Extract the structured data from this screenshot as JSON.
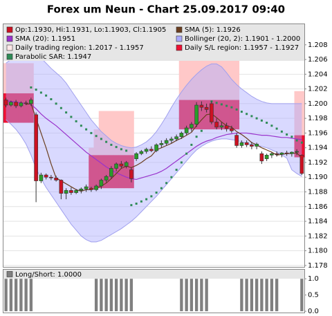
{
  "chart_data": [
    {
      "type": "candlestick",
      "title": "Forex um Neun - Chart 25.09.2017 09:40",
      "up_color": "#2a9c2a",
      "down_color": "#cc1122",
      "ylim": [
        1.1778,
        1.2108
      ],
      "yticks": [
        1.178,
        {
          "value": 1.18,
          "label": "1.180"
        },
        1.182,
        1.184,
        1.186,
        1.188,
        {
          "value": 1.19,
          "label": "1.190"
        },
        1.192,
        1.194,
        1.196,
        1.198,
        {
          "value": 1.2,
          "label": "1.200"
        },
        1.202,
        1.204,
        1.206,
        1.208
      ],
      "grid": true,
      "legend": [
        {
          "label": "Op:1.1930, Hi:1.1931, Lo:1.1903, Cl:1.1905",
          "color": "#cc1122"
        },
        {
          "label": "SMA (5): 1.1926",
          "color": "#6b3e1f"
        },
        {
          "label": "SMA (20): 1.1951",
          "color": "#9933cc"
        },
        {
          "label": "Bollinger (20, 2): 1.1901 - 1.2000",
          "color": "#aaaaff"
        },
        {
          "label": "Daily trading region: 1.2017 - 1.1957",
          "color": "#ffe8e8"
        },
        {
          "label": "Daily S/L region: 1.1957 - 1.1927",
          "color": "#ee1133"
        },
        {
          "label": "Parabolic SAR: 1.1947",
          "color": "#2e8b57"
        }
      ],
      "open": [
        1.2005,
        1.1998,
        1.2002,
        1.1997,
        1.2001,
        1.2,
        1.1985,
        1.1895,
        1.1903,
        1.19,
        1.1899,
        1.1896,
        1.1878,
        1.1882,
        1.1879,
        1.1882,
        1.1884,
        1.1885,
        1.1883,
        1.1888,
        1.1896,
        1.1901,
        1.1912,
        1.1918,
        1.1915,
        1.191,
        1.1925,
        1.1932,
        1.1935,
        1.1938,
        1.1936,
        1.1944,
        1.1946,
        1.195,
        1.1952,
        1.1955,
        1.196,
        1.1967,
        1.1972,
        1.1998,
        1.1995,
        1.2,
        1.1975,
        1.1968,
        1.197,
        1.1966,
        1.1957,
        1.1943,
        1.1947,
        1.1944,
        1.1942,
        1.1932,
        1.1925,
        1.193,
        1.1932,
        1.1931,
        1.1933,
        1.1932,
        1.1934,
        1.193
      ],
      "high": [
        1.2008,
        1.2004,
        1.2005,
        1.2003,
        1.2004,
        1.2008,
        1.1988,
        1.1906,
        1.1905,
        1.1903,
        1.1902,
        1.1897,
        1.1885,
        1.1886,
        1.1884,
        1.1886,
        1.189,
        1.1887,
        1.189,
        1.1898,
        1.1903,
        1.1915,
        1.192,
        1.1922,
        1.1922,
        1.1913,
        1.1934,
        1.1937,
        1.194,
        1.1942,
        1.1946,
        1.195,
        1.1953,
        1.1955,
        1.1958,
        1.1962,
        1.197,
        1.1975,
        1.2002,
        1.2003,
        1.2,
        1.2003,
        1.198,
        1.1975,
        1.1974,
        1.197,
        1.196,
        1.195,
        1.195,
        1.1948,
        1.1947,
        1.1935,
        1.1932,
        1.1934,
        1.1935,
        1.1934,
        1.1936,
        1.1935,
        1.1938,
        1.1931
      ],
      "low": [
        1.1995,
        1.1996,
        1.1994,
        1.1995,
        1.1998,
        1.1997,
        1.1866,
        1.1892,
        1.1897,
        1.1896,
        1.1894,
        1.187,
        1.187,
        1.1876,
        1.1877,
        1.1878,
        1.188,
        1.188,
        1.1881,
        1.1884,
        1.1893,
        1.1898,
        1.1908,
        1.1912,
        1.1912,
        1.1893,
        1.1922,
        1.193,
        1.1932,
        1.1934,
        1.1934,
        1.194,
        1.1943,
        1.1946,
        1.1949,
        1.1952,
        1.1957,
        1.1962,
        1.1968,
        1.199,
        1.1988,
        1.1972,
        1.1965,
        1.1964,
        1.1962,
        1.196,
        1.194,
        1.194,
        1.1941,
        1.1938,
        1.1938,
        1.1918,
        1.1922,
        1.1926,
        1.1928,
        1.1927,
        1.1929,
        1.1928,
        1.193,
        1.1903
      ],
      "close": [
        1.1998,
        1.2002,
        1.1997,
        1.2001,
        1.2,
        1.2005,
        1.1895,
        1.1903,
        1.19,
        1.1899,
        1.1896,
        1.1878,
        1.1882,
        1.1879,
        1.1882,
        1.1884,
        1.1887,
        1.1883,
        1.1888,
        1.1896,
        1.1901,
        1.1912,
        1.1918,
        1.1915,
        1.192,
        1.1898,
        1.1932,
        1.1935,
        1.1938,
        1.1936,
        1.1944,
        1.1946,
        1.195,
        1.1952,
        1.1955,
        1.196,
        1.1967,
        1.1972,
        1.1998,
        1.1995,
        1.1992,
        1.1975,
        1.1968,
        1.197,
        1.1966,
        1.1963,
        1.1943,
        1.1947,
        1.1944,
        1.1942,
        1.1945,
        1.1922,
        1.193,
        1.1932,
        1.1931,
        1.1933,
        1.1932,
        1.1934,
        1.1935,
        1.1905
      ],
      "sma5": [
        null,
        null,
        null,
        null,
        1.1999,
        1.2,
        1.198,
        1.196,
        1.194,
        1.1918,
        1.1899,
        1.1895,
        1.1891,
        1.1887,
        1.1883,
        1.1881,
        1.1883,
        1.1883,
        1.1885,
        1.1888,
        1.1892,
        1.1898,
        1.1905,
        1.1912,
        1.1915,
        1.1913,
        1.1916,
        1.192,
        1.1925,
        1.1929,
        1.1937,
        1.194,
        1.1943,
        1.1946,
        1.195,
        1.1953,
        1.1957,
        1.1961,
        1.197,
        1.1978,
        1.1985,
        1.1986,
        1.1981,
        1.1975,
        1.197,
        1.1968,
        1.1962,
        1.1958,
        1.1953,
        1.1947,
        1.1944,
        1.194,
        1.1937,
        1.1934,
        1.193,
        1.1931,
        1.1932,
        1.1932,
        1.1933,
        1.1926
      ],
      "sma20": [
        1.2004,
        1.2003,
        1.2002,
        1.2001,
        1.2,
        1.1999,
        1.1993,
        1.1986,
        1.198,
        1.1975,
        1.197,
        1.1964,
        1.1958,
        1.1952,
        1.1946,
        1.194,
        1.1934,
        1.1929,
        1.1924,
        1.1919,
        1.1914,
        1.191,
        1.1906,
        1.1903,
        1.19,
        1.1898,
        1.1897,
        1.1899,
        1.1901,
        1.1903,
        1.1905,
        1.1908,
        1.1912,
        1.1917,
        1.1922,
        1.1927,
        1.1932,
        1.1937,
        1.1942,
        1.1946,
        1.1949,
        1.1951,
        1.1954,
        1.1956,
        1.1958,
        1.1959,
        1.196,
        1.196,
        1.196,
        1.1959,
        1.1958,
        1.1957,
        1.1957,
        1.1956,
        1.1955,
        1.1954,
        1.1954,
        1.1953,
        1.1952,
        1.1951
      ],
      "bollinger_upper": [
        1.2055,
        1.206,
        1.2064,
        1.2067,
        1.2069,
        1.207,
        1.2068,
        1.2062,
        1.2055,
        1.2048,
        1.2042,
        1.2036,
        1.2028,
        1.2018,
        1.2008,
        1.1998,
        1.1988,
        1.1978,
        1.197,
        1.1962,
        1.1956,
        1.195,
        1.1946,
        1.1943,
        1.1941,
        1.194,
        1.1941,
        1.1944,
        1.1948,
        1.1954,
        1.1962,
        1.1972,
        1.1983,
        1.1995,
        1.2006,
        1.2016,
        1.2025,
        1.2033,
        1.204,
        1.2046,
        1.2051,
        1.2054,
        1.2054,
        1.205,
        1.2042,
        1.2033,
        1.2026,
        1.202,
        1.2015,
        1.201,
        1.2006,
        1.2003,
        1.2001,
        1.2,
        1.2,
        1.2,
        1.2,
        1.2,
        1.2,
        1.2
      ],
      "bollinger_lower": [
        1.1978,
        1.1972,
        1.1965,
        1.1956,
        1.1945,
        1.193,
        1.1912,
        1.1898,
        1.1886,
        1.1876,
        1.1866,
        1.1856,
        1.1846,
        1.1836,
        1.1828,
        1.182,
        1.1815,
        1.1812,
        1.1812,
        1.1814,
        1.1818,
        1.1822,
        1.1826,
        1.183,
        1.1835,
        1.184,
        1.1846,
        1.1853,
        1.186,
        1.1867,
        1.1874,
        1.1882,
        1.189,
        1.1898,
        1.1906,
        1.1914,
        1.1922,
        1.193,
        1.1937,
        1.1942,
        1.1946,
        1.1949,
        1.1951,
        1.1952,
        1.1952,
        1.1951,
        1.195,
        1.1948,
        1.1946,
        1.1944,
        1.1943,
        1.1942,
        1.194,
        1.1937,
        1.1934,
        1.193,
        1.1926,
        1.191,
        1.1905,
        1.1901
      ],
      "sar": [
        null,
        null,
        null,
        null,
        null,
        1.2022,
        1.2019,
        1.2015,
        1.2011,
        1.2006,
        1.2,
        1.1994,
        1.1988,
        1.1982,
        1.1976,
        1.197,
        1.1965,
        1.196,
        1.1956,
        1.1952,
        1.1948,
        1.1944,
        1.1941,
        1.1938,
        1.1936,
        1.1862,
        1.1864,
        1.1867,
        1.187,
        1.1874,
        1.1879,
        1.1885,
        1.1892,
        1.19,
        1.191,
        1.192,
        1.1932,
        1.1944,
        1.1955,
        1.1963,
        null,
        1.2003,
        1.2001,
        1.1999,
        1.1997,
        1.1995,
        1.1992,
        1.1989,
        1.1986,
        1.1983,
        1.198,
        1.1977,
        1.1974,
        1.197,
        1.1966,
        1.1962,
        1.1958,
        1.1955,
        1.195,
        1.1947
      ],
      "trading_top": [
        1.2055,
        1.2055,
        1.2055,
        1.2055,
        1.2055,
        1.2055,
        null,
        null,
        null,
        null,
        null,
        null,
        null,
        null,
        null,
        null,
        null,
        1.194,
        1.1965,
        1.199,
        1.199,
        1.199,
        1.199,
        1.199,
        1.199,
        1.199,
        null,
        null,
        null,
        null,
        null,
        null,
        null,
        null,
        null,
        1.206,
        1.206,
        1.206,
        1.206,
        1.206,
        1.206,
        1.206,
        1.206,
        1.206,
        1.206,
        1.206,
        1.206,
        null,
        null,
        null,
        null,
        null,
        null,
        null,
        null,
        null,
        null,
        null,
        1.2017,
        1.2017
      ],
      "trading_bottom": [
        1.2014,
        1.2014,
        1.2014,
        1.2014,
        1.2014,
        1.2014,
        null,
        null,
        null,
        null,
        null,
        null,
        null,
        null,
        null,
        null,
        null,
        1.193,
        1.193,
        1.193,
        1.193,
        1.193,
        1.193,
        1.193,
        1.193,
        1.193,
        null,
        null,
        null,
        null,
        null,
        null,
        null,
        null,
        null,
        1.2005,
        1.2005,
        1.2005,
        1.2005,
        1.2005,
        1.2005,
        1.2005,
        1.2005,
        1.2005,
        1.2005,
        1.2005,
        1.2005,
        null,
        null,
        null,
        null,
        null,
        null,
        null,
        null,
        null,
        null,
        null,
        1.1957,
        1.1957
      ],
      "sl_top": [
        1.2014,
        1.2014,
        1.2014,
        1.2014,
        1.2014,
        1.2014,
        null,
        null,
        null,
        null,
        null,
        null,
        null,
        null,
        null,
        null,
        null,
        1.193,
        1.193,
        1.193,
        1.193,
        1.193,
        1.193,
        1.193,
        1.193,
        1.193,
        null,
        null,
        null,
        null,
        null,
        null,
        null,
        null,
        null,
        1.2005,
        1.2005,
        1.2005,
        1.2005,
        1.2005,
        1.2005,
        1.2005,
        1.2005,
        1.2005,
        1.2005,
        1.2005,
        1.2005,
        null,
        null,
        null,
        null,
        null,
        null,
        null,
        null,
        null,
        null,
        null,
        1.1957,
        1.1957
      ],
      "sl_bottom": [
        1.1974,
        1.1974,
        1.1974,
        1.1974,
        1.1974,
        1.1974,
        null,
        null,
        null,
        null,
        null,
        null,
        null,
        null,
        null,
        null,
        null,
        1.1885,
        1.1885,
        1.1885,
        1.1885,
        1.1885,
        1.1885,
        1.1885,
        1.1885,
        1.1885,
        null,
        null,
        null,
        null,
        null,
        null,
        null,
        null,
        null,
        1.1965,
        1.1965,
        1.1965,
        1.1965,
        1.1965,
        1.1965,
        1.1965,
        1.1965,
        1.1965,
        1.1965,
        1.1965,
        1.1965,
        null,
        null,
        null,
        null,
        null,
        null,
        null,
        null,
        null,
        null,
        null,
        1.1927,
        1.1927
      ]
    },
    {
      "type": "bar",
      "color": "#808080",
      "legend": [
        {
          "label": "Long/Short: 1.0000",
          "color": "#808080"
        }
      ],
      "ylim": [
        -0.04,
        1.28
      ],
      "yticks": [
        {
          "value": 0,
          "label": "0.0"
        },
        0.5,
        {
          "value": 1,
          "label": "1.0"
        }
      ],
      "values": [
        1,
        1,
        1,
        1,
        1,
        1,
        0,
        0,
        0,
        0,
        0,
        0,
        0,
        0,
        0,
        0,
        0,
        0,
        1,
        1,
        1,
        1,
        1,
        1,
        1,
        1,
        0,
        0,
        0,
        0,
        0,
        0,
        0,
        0,
        0,
        1,
        1,
        1,
        1,
        1,
        1,
        0,
        0,
        0,
        0,
        0,
        0,
        1,
        1,
        1,
        1,
        1,
        1,
        1,
        1,
        0,
        0,
        0,
        0,
        1
      ]
    }
  ]
}
